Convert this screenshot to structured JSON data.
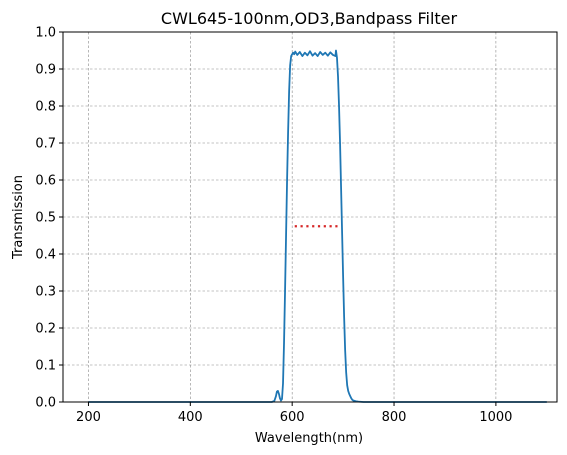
{
  "chart_data": {
    "type": "line",
    "title": "CWL645-100nm,OD3,Bandpass Filter",
    "xlabel": "Wavelength(nm)",
    "ylabel": "Transmission",
    "xlim": [
      150,
      1120
    ],
    "ylim": [
      0.0,
      1.0
    ],
    "xticks": [
      200,
      400,
      600,
      800,
      1000
    ],
    "yticks": [
      0.0,
      0.1,
      0.2,
      0.3,
      0.4,
      0.5,
      0.6,
      0.7,
      0.8,
      0.9,
      1.0
    ],
    "grid": true,
    "series": [
      {
        "color": "#1f77b4",
        "style": "solid",
        "x": [
          200,
          560,
          565,
          568,
          570,
          572,
          574,
          576,
          578,
          580,
          582,
          584,
          586,
          588,
          590,
          592,
          594,
          596,
          598,
          600,
          602,
          604,
          606,
          610,
          615,
          620,
          625,
          630,
          635,
          640,
          645,
          650,
          655,
          660,
          665,
          670,
          675,
          680,
          685,
          686,
          688,
          690,
          692,
          694,
          696,
          698,
          700,
          702,
          704,
          706,
          708,
          710,
          712,
          714,
          716,
          718,
          720,
          725,
          730,
          740,
          1100
        ],
        "y": [
          0.0,
          0.0,
          0.003,
          0.015,
          0.028,
          0.03,
          0.022,
          0.01,
          0.004,
          0.008,
          0.05,
          0.16,
          0.3,
          0.45,
          0.6,
          0.73,
          0.84,
          0.91,
          0.935,
          0.94,
          0.944,
          0.94,
          0.947,
          0.938,
          0.946,
          0.935,
          0.944,
          0.937,
          0.948,
          0.936,
          0.943,
          0.935,
          0.946,
          0.938,
          0.944,
          0.936,
          0.945,
          0.938,
          0.935,
          0.95,
          0.93,
          0.88,
          0.8,
          0.7,
          0.58,
          0.46,
          0.34,
          0.23,
          0.14,
          0.08,
          0.045,
          0.03,
          0.022,
          0.016,
          0.01,
          0.006,
          0.004,
          0.002,
          0.001,
          0.0,
          0.0
        ]
      },
      {
        "color": "#d62728",
        "style": "dotted",
        "x": [
          605,
          690
        ],
        "y": [
          0.475,
          0.475
        ]
      }
    ]
  }
}
